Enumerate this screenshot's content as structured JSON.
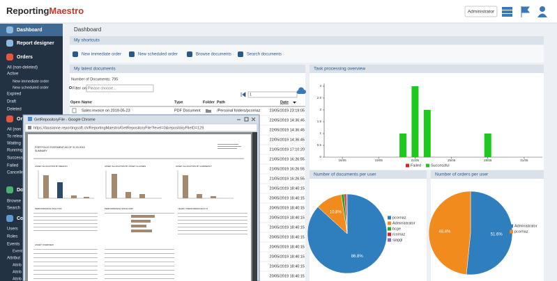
{
  "header": {
    "logo": {
      "part1": "Reporting",
      "part2": "Maestro"
    },
    "user_button": "Administrator"
  },
  "sidebar": {
    "sections": [
      {
        "title": "Dashboard"
      },
      {
        "title": "Report designer"
      },
      {
        "title": "Orders",
        "items": [
          "All (non-deleted)",
          {
            "label": "Active",
            "items": [
              "New immediate order",
              "New scheduled order"
            ]
          },
          "Expired",
          "Draft",
          "Deleted"
        ]
      },
      {
        "title": "Or",
        "items": [
          "All (non",
          "To releas",
          "Waiting",
          "Running",
          "Successful",
          "Failed",
          "Cancelled"
        ]
      },
      {
        "title": "Do",
        "items": [
          "Browse",
          "Search"
        ]
      },
      {
        "title": "Co",
        "items": [
          "Users",
          "Roles",
          {
            "label": "Events",
            "items": [
              "Event"
            ]
          },
          {
            "label": "Attribut",
            "items": [
              "Attrib",
              "Attrib",
              "Attrib"
            ]
          }
        ]
      }
    ]
  },
  "page_title": "Dashboard",
  "shortcuts": {
    "title": "My shortcuts",
    "items": [
      "New immediate order",
      "New scheduled order",
      "Browse documents",
      "Search documents"
    ]
  },
  "latest_documents": {
    "title": "My latest documents",
    "count_text": "Number of Documents: 795",
    "filter_label": "Filter on",
    "filter_placeholder": "Please choose...",
    "page": "1",
    "columns": [
      "Open",
      "Name",
      "Type",
      "Folder",
      "Path",
      "Date"
    ],
    "rows": [
      {
        "name": "Sales invoice on 2019-05-23",
        "type": "PDF Document",
        "path": "/Personal folders/pcornaz",
        "date": "23/05/2019 23:19:05"
      },
      {
        "date": "22/05/2019 14:36:45"
      },
      {
        "date": "22/05/2019 14:36:45"
      },
      {
        "date": "22/05/2019 14:36:45"
      },
      {
        "date": "21/05/2019 17:10:20"
      },
      {
        "date": "21/05/2019 16:26:55"
      },
      {
        "date": "21/05/2019 16:26:55"
      },
      {
        "date": "21/05/2019 16:26:55"
      },
      {
        "date": "20/05/2019 18:40:15"
      },
      {
        "date": "20/05/2019 18:40:15"
      },
      {
        "date": "20/05/2019 18:40:15"
      },
      {
        "date": "20/05/2019 18:40:15"
      },
      {
        "date": "20/05/2019 18:40:15"
      },
      {
        "date": "20/05/2019 18:40:15"
      },
      {
        "date": "20/05/2019 18:40:15"
      },
      {
        "date": "20/05/2019 18:40:15"
      },
      {
        "date": "20/05/2019 18:40:15"
      },
      {
        "date": "20/05/2019 18:40:15"
      }
    ]
  },
  "chart_data": [
    {
      "type": "bar",
      "title": "Task processing overview",
      "categories": [
        null,
        "16/05",
        null,
        null,
        "19/05",
        null,
        null,
        "22/05",
        null,
        null,
        "25/05",
        null,
        null,
        "28/05",
        null,
        null,
        "31/05",
        null
      ],
      "series": [
        {
          "name": "Failed",
          "color": "#d62728",
          "values": [
            0,
            0,
            0,
            0,
            0,
            0,
            0,
            0,
            0,
            0,
            0,
            0,
            0,
            0,
            0,
            0,
            0,
            0
          ]
        },
        {
          "name": "Successful",
          "color": "#1ec81e",
          "values": [
            0,
            0,
            0,
            0,
            0,
            0,
            1,
            3,
            2,
            0,
            0,
            0,
            0,
            1,
            0,
            0,
            0,
            0
          ]
        }
      ],
      "ylim": [
        0,
        3
      ],
      "yticks": [
        0,
        0.5,
        1,
        1.5,
        2,
        2.5,
        3
      ]
    },
    {
      "type": "pie",
      "title": "Number of documents per user",
      "categories": [
        "pcornaz",
        "Administrator",
        "bcge",
        "rcornaz",
        "sjaggi"
      ],
      "values": [
        86.8,
        10.8,
        1.2,
        0.8,
        0.4
      ],
      "value_labels": [
        "86.8%",
        "10.8%",
        null,
        null,
        null
      ],
      "colors": [
        "#2f7ebd",
        "#f28b1e",
        "#2ca02c",
        "#d62728",
        "#9467bd"
      ]
    },
    {
      "type": "pie",
      "title": "Number of orders per user",
      "categories": [
        "Administrator",
        "pcornaz"
      ],
      "values": [
        51.6,
        48.4
      ],
      "value_labels": [
        "51.6%",
        "48.4%"
      ],
      "colors": [
        "#2f7ebd",
        "#f28b1e"
      ]
    }
  ],
  "popup": {
    "window_title": "GetRepositoryFile - Google Chrome",
    "url": "https://lausanne.reportingsoft.ch/ReportingMaestro/GetRepositoryFile?level=0&repositoryFileID=129",
    "report": {
      "title": "PORTFOLIO STATEMENT AS OF 31.03.2015",
      "subtitle": "SUMMARY",
      "sections": [
        "ASSET ALLOCATION BY REGION",
        "ASSET ALLOCATION BY ASSET CLASSES",
        "ASSET ALLOCATION BY CURRENCY",
        "PERFORMANCE ANALYSIS",
        "PERFORMANCE SINCE 2015",
        "YEARLY PERFORMANCE IN %",
        "ASSET OVERVIEW"
      ]
    }
  }
}
